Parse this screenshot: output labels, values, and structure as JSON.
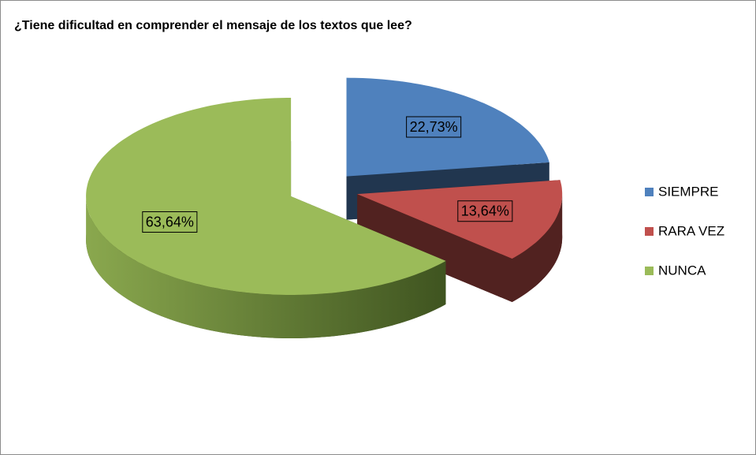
{
  "chart_data": {
    "type": "pie",
    "title": "¿Tiene dificultad en comprender el mensaje de los textos que lee?",
    "categories": [
      "SIEMPRE",
      "RARA VEZ",
      "NUNCA"
    ],
    "values": [
      22.73,
      13.64,
      63.64
    ],
    "value_labels": [
      "22,73%",
      "13,64%",
      "63,64%"
    ],
    "colors": [
      "#4F81BD",
      "#C0504D",
      "#9BBB59"
    ],
    "legend": "right"
  }
}
